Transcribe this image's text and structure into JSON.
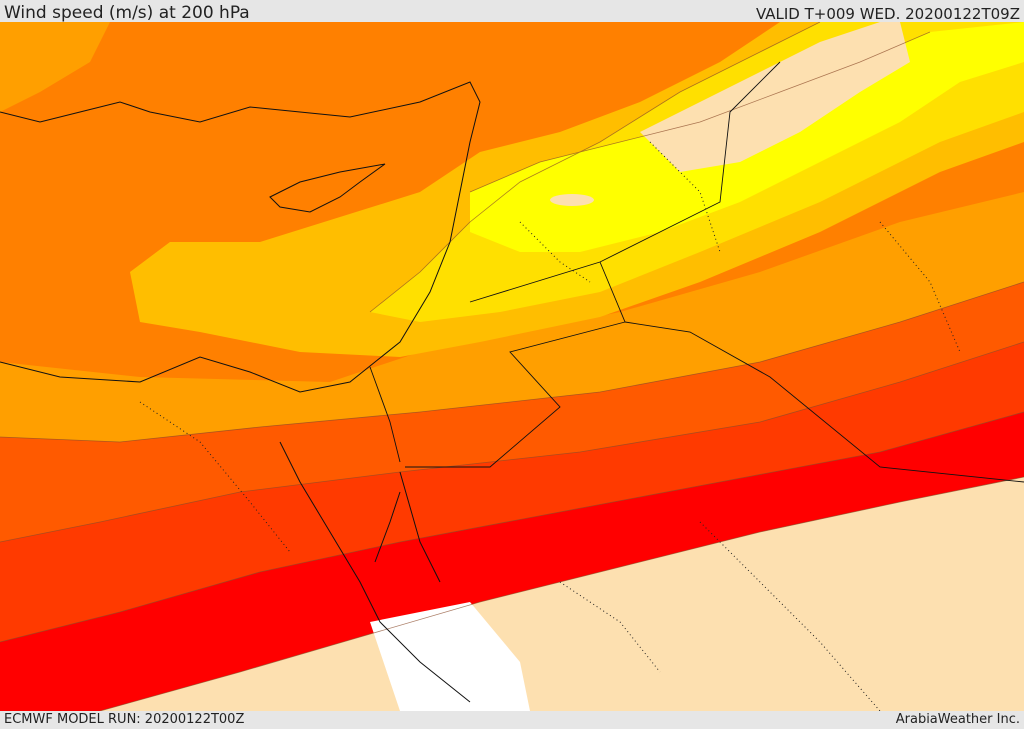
{
  "header": {
    "title": "Wind speed (m/s) at 200 hPa",
    "valid": "VALID T+009 WED. 20200122T09Z"
  },
  "footer": {
    "model_run": "ECMWF MODEL RUN: 20200122T00Z",
    "credit": "ArabiaWeather Inc."
  },
  "map": {
    "variable": "wind speed",
    "level": "200 hPa",
    "fill_colors": {
      "land_calm": "#fde0b0",
      "band_yellow": "#ffff00",
      "band_gold": "#ffe000",
      "band_amber": "#ffbe00",
      "band_orange_light": "#ff9f00",
      "band_orange": "#ff8000",
      "band_orange_deep": "#ff5a00",
      "band_red_orange": "#ff3a00",
      "band_red": "#ff0000",
      "no_data": "#ffffff"
    }
  }
}
